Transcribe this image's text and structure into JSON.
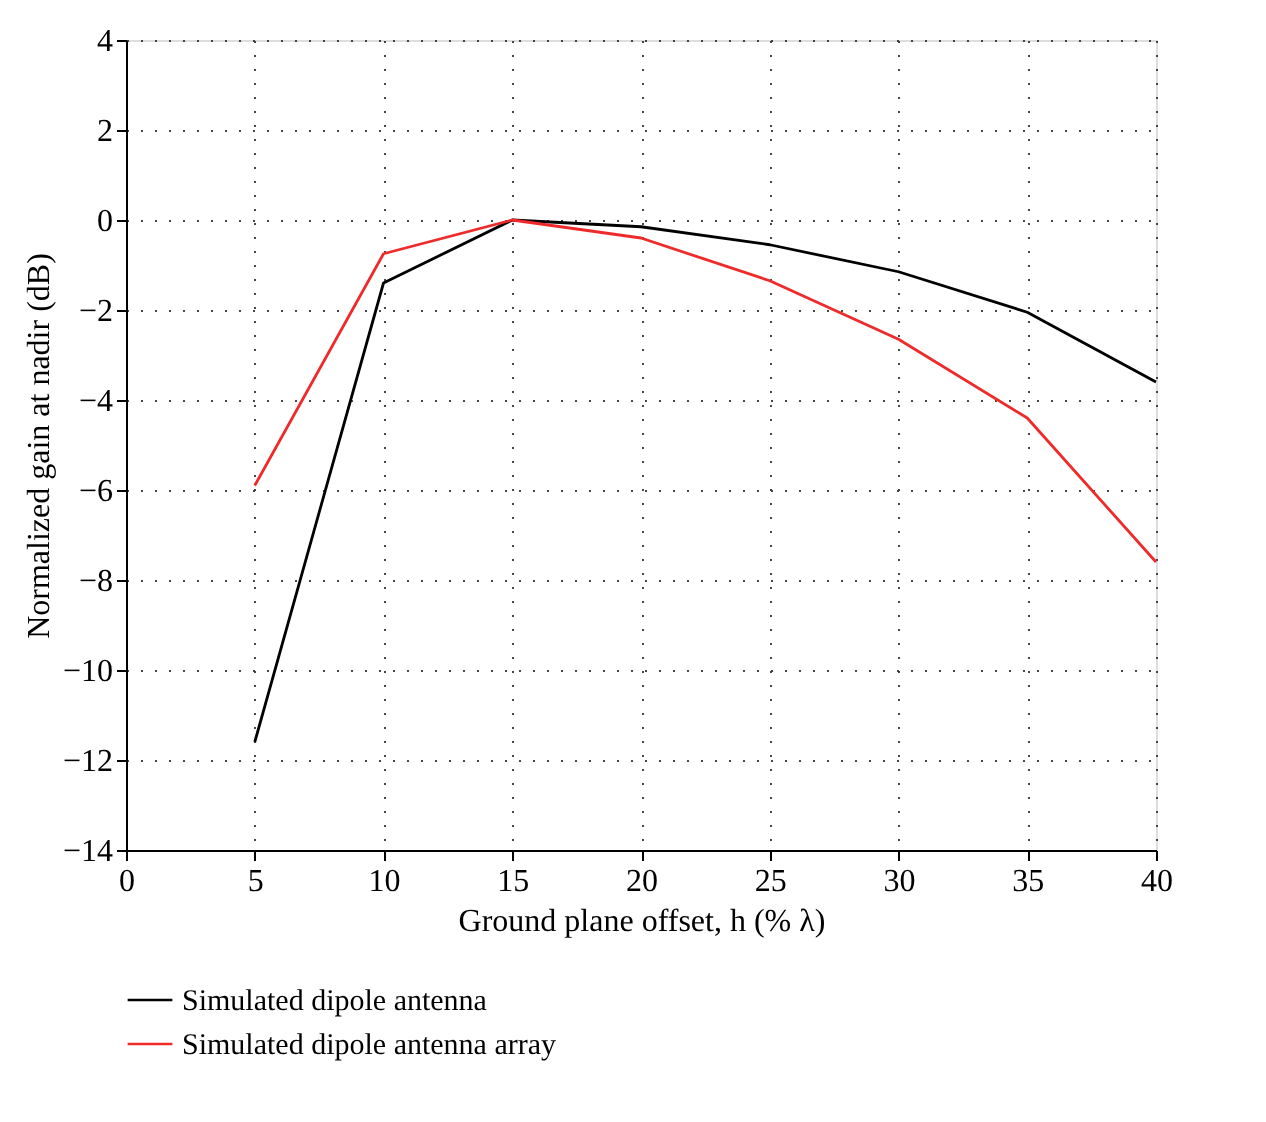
{
  "chart_data": {
    "type": "line",
    "xlabel": "Ground plane offset, h (% λ)",
    "ylabel": "Normalized gain at nadir (dB)",
    "x": [
      5,
      10,
      15,
      20,
      25,
      30,
      35,
      40
    ],
    "series": [
      {
        "name": "Simulated dipole antenna",
        "color": "#000000",
        "values": [
          -11.6,
          -1.4,
          0,
          -0.15,
          -0.55,
          -1.15,
          -2.05,
          -3.6
        ]
      },
      {
        "name": "Simulated dipole antenna array",
        "color": "#ee2a2a",
        "values": [
          -5.9,
          -0.75,
          0,
          -0.4,
          -1.35,
          -2.65,
          -4.4,
          -7.6
        ]
      }
    ],
    "xlim": [
      0,
      40
    ],
    "xticks": [
      0,
      5,
      10,
      15,
      20,
      25,
      30,
      35,
      40
    ],
    "ylim": [
      -14,
      4
    ],
    "yticks": [
      -14,
      -12,
      -10,
      -8,
      -6,
      -4,
      -2,
      0,
      2,
      4
    ],
    "grid": true,
    "legend": "bottom",
    "marker": "none",
    "line_style": "solid"
  }
}
